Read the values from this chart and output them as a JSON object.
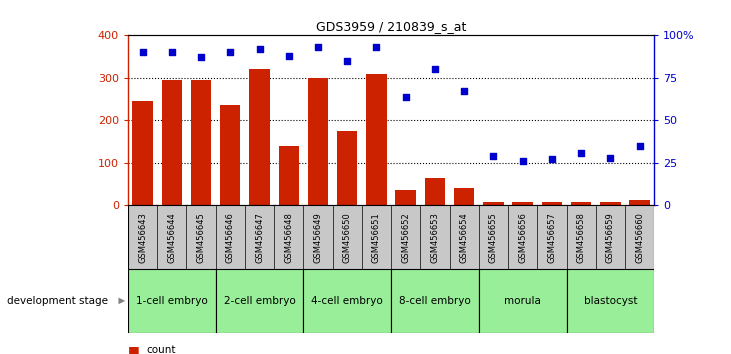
{
  "title": "GDS3959 / 210839_s_at",
  "samples": [
    "GSM456643",
    "GSM456644",
    "GSM456645",
    "GSM456646",
    "GSM456647",
    "GSM456648",
    "GSM456649",
    "GSM456650",
    "GSM456651",
    "GSM456652",
    "GSM456653",
    "GSM456654",
    "GSM456655",
    "GSM456656",
    "GSM456657",
    "GSM456658",
    "GSM456659",
    "GSM456660"
  ],
  "counts": [
    245,
    295,
    295,
    237,
    320,
    140,
    300,
    175,
    310,
    35,
    65,
    40,
    8,
    8,
    8,
    8,
    8,
    12
  ],
  "percentiles": [
    90,
    90,
    87,
    90,
    92,
    88,
    93,
    85,
    93,
    64,
    80,
    67,
    29,
    26,
    27,
    31,
    28,
    35
  ],
  "stages": [
    {
      "label": "1-cell embryo",
      "start": 0,
      "end": 3
    },
    {
      "label": "2-cell embryo",
      "start": 3,
      "end": 6
    },
    {
      "label": "4-cell embryo",
      "start": 6,
      "end": 9
    },
    {
      "label": "8-cell embryo",
      "start": 9,
      "end": 12
    },
    {
      "label": "morula",
      "start": 12,
      "end": 15
    },
    {
      "label": "blastocyst",
      "start": 15,
      "end": 18
    }
  ],
  "ylim_left": [
    0,
    400
  ],
  "ylim_right": [
    0,
    100
  ],
  "yticks_left": [
    0,
    100,
    200,
    300,
    400
  ],
  "yticks_right": [
    0,
    25,
    50,
    75,
    100
  ],
  "bar_color": "#cc2200",
  "dot_color": "#0000cc",
  "stage_color": "#99ee99",
  "header_color": "#c8c8c8",
  "background_color": "#ffffff",
  "grid_color": "#000000"
}
